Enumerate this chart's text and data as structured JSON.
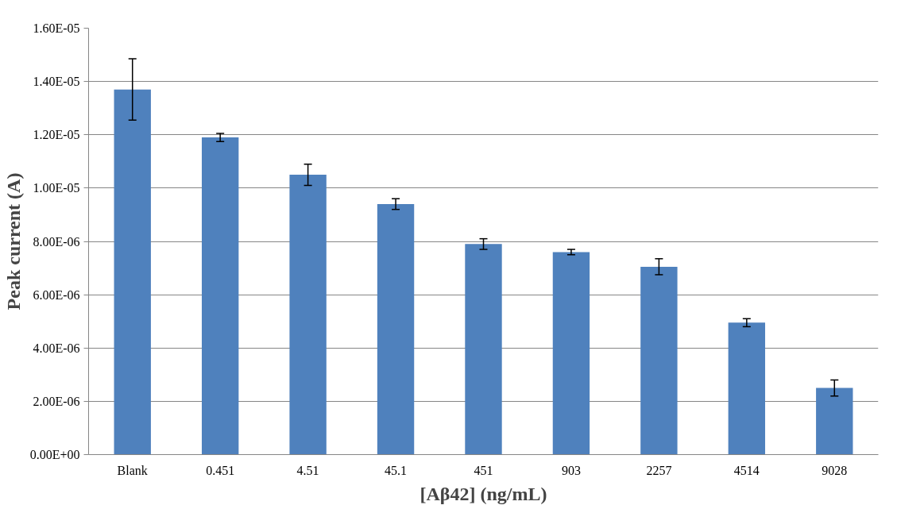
{
  "chart_data": {
    "type": "bar",
    "xlabel": "[Aβ42] (ng/mL)",
    "ylabel": "Peak current (A)",
    "categories": [
      "Blank",
      "0.451",
      "4.51",
      "45.1",
      "451",
      "903",
      "2257",
      "4514",
      "9028"
    ],
    "values": [
      1.37e-05,
      1.19e-05,
      1.05e-05,
      9.4e-06,
      7.9e-06,
      7.6e-06,
      7.05e-06,
      4.95e-06,
      2.5e-06
    ],
    "errors": [
      1.15e-06,
      1.5e-07,
      4e-07,
      2e-07,
      2e-07,
      1e-07,
      3e-07,
      1.5e-07,
      3e-07
    ],
    "color": "#4f81bd",
    "ylim": [
      0,
      1.6e-05
    ],
    "yticks": [
      {
        "value": 0,
        "label": "0.00E+00"
      },
      {
        "value": 2e-06,
        "label": "2.00E-06"
      },
      {
        "value": 4e-06,
        "label": "4.00E-06"
      },
      {
        "value": 6e-06,
        "label": "6.00E-06"
      },
      {
        "value": 8e-06,
        "label": "8.00E-06"
      },
      {
        "value": 1e-05,
        "label": "1.00E-05"
      },
      {
        "value": 1.2e-05,
        "label": "1.20E-05"
      },
      {
        "value": 1.4e-05,
        "label": "1.40E-05"
      },
      {
        "value": 1.6e-05,
        "label": "1.60E-05"
      }
    ],
    "grid": "y"
  }
}
